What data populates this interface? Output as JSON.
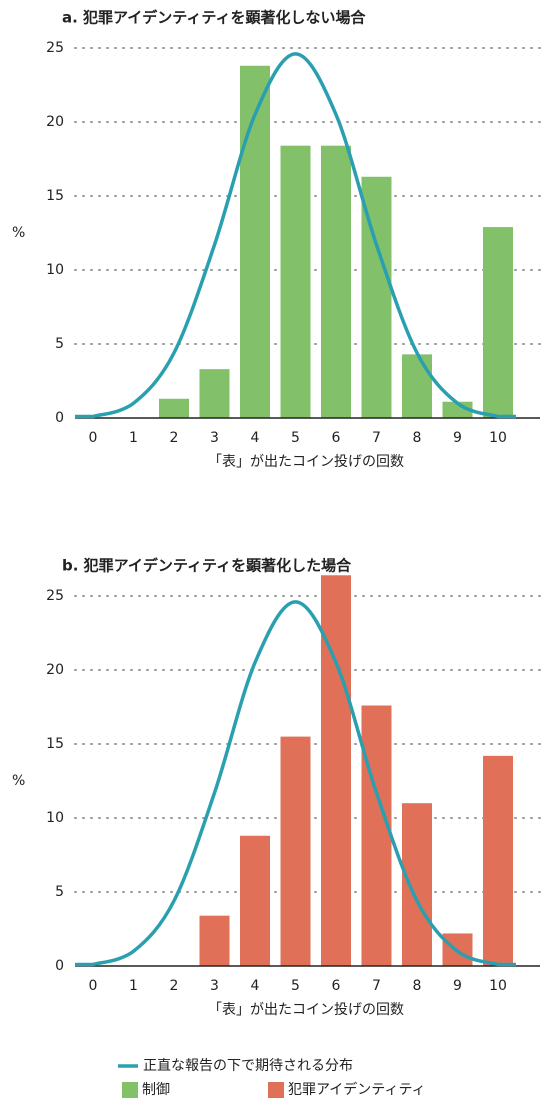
{
  "chart_data": [
    {
      "type": "bar",
      "title": "a.  犯罪アイデンティティを顕著化しない場合",
      "ylabel": "%",
      "xlabel": "「表」が出たコイン投げの回数",
      "categories": [
        "0",
        "1",
        "2",
        "3",
        "4",
        "5",
        "6",
        "7",
        "8",
        "9",
        "10"
      ],
      "series": [
        {
          "name": "正直な報告の下で期待される分布",
          "type": "line",
          "color": "#2a9fb0",
          "values": [
            0.1,
            1.0,
            4.4,
            11.7,
            20.5,
            24.6,
            20.5,
            11.7,
            4.4,
            1.0,
            0.1
          ]
        },
        {
          "name": "制御",
          "type": "bar",
          "color": "#82c06a",
          "values": [
            0,
            0,
            1.3,
            3.3,
            23.8,
            18.4,
            18.4,
            16.3,
            4.3,
            1.1,
            12.9
          ]
        }
      ],
      "ylim": [
        0,
        25
      ],
      "yticks": [
        0,
        5,
        10,
        15,
        20,
        25
      ],
      "grid": true
    },
    {
      "type": "bar",
      "title": "b.  犯罪アイデンティティを顕著化した場合",
      "ylabel": "%",
      "xlabel": "「表」が出たコイン投げの回数",
      "categories": [
        "0",
        "1",
        "2",
        "3",
        "4",
        "5",
        "6",
        "7",
        "8",
        "9",
        "10"
      ],
      "series": [
        {
          "type": "line",
          "color": "#2a9fb0",
          "values": [
            0.1,
            1.0,
            4.4,
            11.7,
            20.5,
            24.6,
            20.5,
            11.7,
            4.4,
            1.0,
            0.1
          ]
        },
        {
          "name": "犯罪アイデンティティ",
          "type": "bar",
          "color": "#e07058",
          "values": [
            0,
            0,
            0,
            3.4,
            8.8,
            15.5,
            26.4,
            17.6,
            11.0,
            2.2,
            14.2
          ]
        }
      ],
      "ylim": [
        0,
        25
      ],
      "yticks": [
        0,
        5,
        10,
        15,
        20,
        25
      ],
      "grid": true
    }
  ]
}
